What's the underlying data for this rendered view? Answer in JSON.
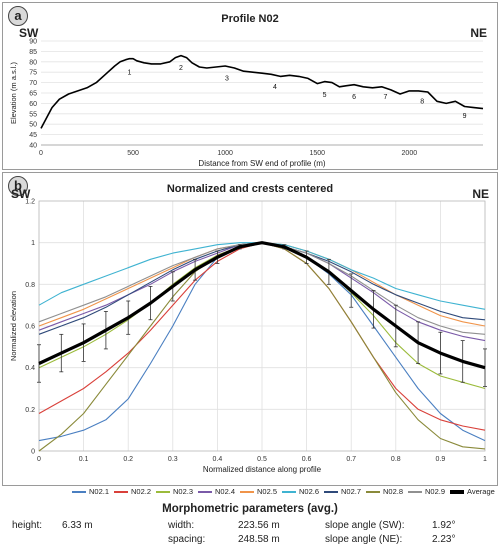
{
  "panel_a": {
    "badge": "a",
    "title": "Profile N02",
    "left_label": "SW",
    "right_label": "NE"
  },
  "panel_b": {
    "badge": "b",
    "title": "Normalized and crests centered",
    "left_label": "SW",
    "right_label": "NE"
  },
  "morphometrics": {
    "title": "Morphometric parameters (avg.)",
    "height_label": "height:",
    "height_value": "6.33 m",
    "width_label": "width:",
    "width_value": "223.56 m",
    "spacing_label": "spacing:",
    "spacing_value": "248.58 m",
    "slope_sw_label": "slope angle (SW):",
    "slope_sw_value": "1.92°",
    "slope_ne_label": "slope angle (NE):",
    "slope_ne_value": "2.23°"
  },
  "chart_data": [
    {
      "type": "line",
      "title": "Profile N02",
      "xlabel": "Distance from SW end of profile (m)",
      "ylabel": "Elevation (m a.s.l.)",
      "xlim": [
        0,
        2400
      ],
      "ylim": [
        40,
        90
      ],
      "xticks": [
        0,
        500,
        1000,
        1500,
        2000
      ],
      "yticks": [
        40,
        45,
        50,
        55,
        60,
        65,
        70,
        75,
        80,
        85,
        90
      ],
      "grid": "horizontal",
      "line_color": "#000000",
      "series": [
        {
          "x": [
            0,
            30,
            60,
            100,
            150,
            200,
            250,
            300,
            350,
            400,
            430,
            460,
            480,
            500,
            520,
            560,
            600,
            650,
            700,
            730,
            760,
            790,
            820,
            860,
            900,
            950,
            1000,
            1050,
            1100,
            1150,
            1200,
            1250,
            1300,
            1350,
            1400,
            1450,
            1500,
            1540,
            1580,
            1620,
            1660,
            1700,
            1750,
            1800,
            1850,
            1900,
            1950,
            2000,
            2050,
            2100,
            2150,
            2200,
            2250,
            2300,
            2350,
            2400
          ],
          "y": [
            48,
            53,
            58,
            62,
            64.5,
            66,
            67.5,
            70,
            74,
            78,
            80,
            81,
            81.5,
            81.5,
            80.5,
            79.5,
            79,
            79,
            80,
            82,
            83,
            82,
            79.5,
            77.5,
            77,
            77.5,
            78,
            77,
            75.5,
            75,
            74.5,
            74,
            73,
            73.5,
            73,
            72,
            69.5,
            70.5,
            70,
            68,
            68.5,
            69,
            68,
            67.5,
            68,
            66.5,
            64.5,
            66,
            66,
            65.5,
            61,
            60,
            61,
            58.5,
            58,
            57.5
          ]
        }
      ],
      "annotations": [
        {
          "text": "1",
          "x": 480,
          "y": 74
        },
        {
          "text": "2",
          "x": 760,
          "y": 76
        },
        {
          "text": "3",
          "x": 1010,
          "y": 71
        },
        {
          "text": "4",
          "x": 1270,
          "y": 67
        },
        {
          "text": "5",
          "x": 1540,
          "y": 63
        },
        {
          "text": "6",
          "x": 1700,
          "y": 62
        },
        {
          "text": "7",
          "x": 1870,
          "y": 62
        },
        {
          "text": "8",
          "x": 2070,
          "y": 60
        },
        {
          "text": "9",
          "x": 2300,
          "y": 53
        }
      ]
    },
    {
      "type": "line",
      "title": "Normalized and crests centered",
      "xlabel": "Normalized distance along profile",
      "ylabel": "Normalized elevation",
      "xlim": [
        0,
        1
      ],
      "ylim": [
        0,
        1.2
      ],
      "xticks": [
        0,
        0.1,
        0.2,
        0.3,
        0.4,
        0.5,
        0.6,
        0.7,
        0.8,
        0.9,
        1
      ],
      "yticks": [
        0,
        0.2,
        0.4,
        0.6,
        0.8,
        1,
        1.2
      ],
      "grid": "both",
      "legend": "bottom",
      "x": [
        0,
        0.05,
        0.1,
        0.15,
        0.2,
        0.25,
        0.3,
        0.35,
        0.4,
        0.45,
        0.5,
        0.55,
        0.6,
        0.65,
        0.7,
        0.75,
        0.8,
        0.85,
        0.9,
        0.95,
        1
      ],
      "series": [
        {
          "name": "N02.1",
          "color": "#4a7fc1",
          "values": [
            0.05,
            0.07,
            0.1,
            0.15,
            0.25,
            0.42,
            0.6,
            0.8,
            0.93,
            0.98,
            1,
            0.98,
            0.93,
            0.85,
            0.75,
            0.6,
            0.45,
            0.3,
            0.18,
            0.1,
            0.05
          ]
        },
        {
          "name": "N02.2",
          "color": "#d9403a",
          "values": [
            0.18,
            0.24,
            0.3,
            0.38,
            0.47,
            0.58,
            0.7,
            0.82,
            0.91,
            0.97,
            1,
            0.97,
            0.9,
            0.78,
            0.62,
            0.45,
            0.3,
            0.2,
            0.15,
            0.12,
            0.1
          ]
        },
        {
          "name": "N02.3",
          "color": "#9bbb3b",
          "values": [
            0.4,
            0.45,
            0.5,
            0.56,
            0.63,
            0.71,
            0.8,
            0.88,
            0.94,
            0.98,
            1,
            0.98,
            0.93,
            0.86,
            0.76,
            0.65,
            0.52,
            0.42,
            0.36,
            0.33,
            0.3
          ]
        },
        {
          "name": "N02.4",
          "color": "#7a5aa8",
          "values": [
            0.58,
            0.62,
            0.66,
            0.7,
            0.75,
            0.8,
            0.86,
            0.91,
            0.95,
            0.99,
            1,
            0.98,
            0.95,
            0.9,
            0.83,
            0.76,
            0.68,
            0.62,
            0.58,
            0.55,
            0.53
          ]
        },
        {
          "name": "N02.5",
          "color": "#f0944a",
          "values": [
            0.6,
            0.64,
            0.68,
            0.73,
            0.78,
            0.83,
            0.88,
            0.93,
            0.97,
            0.99,
            1,
            0.99,
            0.96,
            0.92,
            0.87,
            0.81,
            0.75,
            0.7,
            0.65,
            0.62,
            0.6
          ]
        },
        {
          "name": "N02.6",
          "color": "#3fb3d1",
          "values": [
            0.7,
            0.76,
            0.8,
            0.84,
            0.88,
            0.92,
            0.95,
            0.97,
            0.99,
            1,
            1,
            0.99,
            0.96,
            0.92,
            0.87,
            0.83,
            0.78,
            0.75,
            0.72,
            0.7,
            0.68
          ]
        },
        {
          "name": "N02.7",
          "color": "#2f4a7a",
          "values": [
            0.56,
            0.6,
            0.64,
            0.69,
            0.75,
            0.81,
            0.87,
            0.92,
            0.96,
            0.99,
            1,
            0.98,
            0.95,
            0.91,
            0.86,
            0.8,
            0.75,
            0.71,
            0.67,
            0.64,
            0.63
          ]
        },
        {
          "name": "N02.8",
          "color": "#8a8a3a",
          "values": [
            0,
            0.08,
            0.18,
            0.32,
            0.46,
            0.6,
            0.74,
            0.86,
            0.94,
            0.98,
            1,
            0.97,
            0.9,
            0.78,
            0.62,
            0.45,
            0.28,
            0.15,
            0.06,
            0.02,
            0.01
          ]
        },
        {
          "name": "N02.9",
          "color": "#909090",
          "values": [
            0.62,
            0.66,
            0.7,
            0.74,
            0.79,
            0.84,
            0.89,
            0.93,
            0.97,
            0.99,
            1,
            0.98,
            0.95,
            0.9,
            0.84,
            0.77,
            0.7,
            0.64,
            0.6,
            0.57,
            0.56
          ]
        },
        {
          "name": "Average",
          "color": "#000000",
          "values": [
            0.42,
            0.47,
            0.52,
            0.58,
            0.64,
            0.71,
            0.79,
            0.87,
            0.93,
            0.98,
            1,
            0.98,
            0.93,
            0.86,
            0.77,
            0.68,
            0.6,
            0.52,
            0.47,
            0.43,
            0.4
          ],
          "error": [
            0.09,
            0.09,
            0.09,
            0.09,
            0.08,
            0.08,
            0.07,
            0.05,
            0.03,
            0.01,
            0,
            0.01,
            0.03,
            0.06,
            0.08,
            0.09,
            0.1,
            0.1,
            0.1,
            0.1,
            0.09
          ]
        }
      ]
    }
  ]
}
